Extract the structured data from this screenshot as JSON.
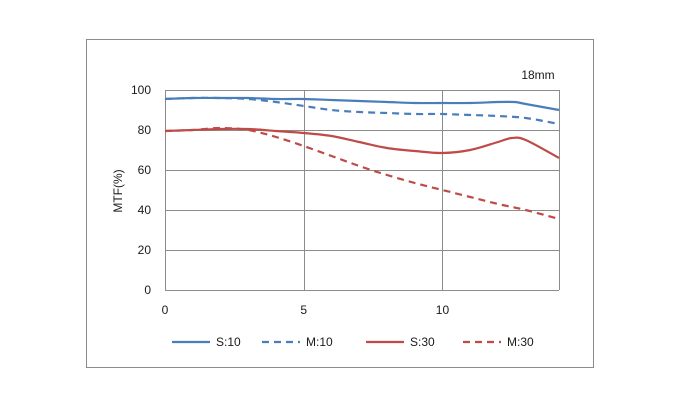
{
  "chart_data": {
    "type": "line",
    "annotation": "18mm",
    "title": "",
    "xlabel": "",
    "ylabel": "MTF(%)",
    "xlim": [
      0,
      14.2
    ],
    "ylim": [
      0,
      100
    ],
    "xticks": [
      0,
      5,
      10
    ],
    "yticks": [
      0,
      20,
      40,
      60,
      80,
      100
    ],
    "xtick_labels": [
      "0",
      "5",
      "10"
    ],
    "ytick_labels": [
      "0",
      "20",
      "40",
      "60",
      "80",
      "100"
    ],
    "grid": "vertical and horizontal",
    "legend_position": "bottom",
    "series": [
      {
        "name": "S:10",
        "color": "#4a7ebb",
        "dashed": false,
        "x": [
          0,
          1,
          2,
          3,
          4,
          5,
          6,
          7,
          8,
          9,
          10,
          11,
          12,
          12.6,
          13,
          14.2
        ],
        "y": [
          95.5,
          96,
          96,
          96,
          95.5,
          95.5,
          95,
          94.5,
          94,
          93.5,
          93.5,
          93.5,
          94,
          94,
          93,
          90
        ]
      },
      {
        "name": "M:10",
        "color": "#4a7ebb",
        "dashed": true,
        "x": [
          0,
          1,
          2,
          3,
          4,
          5,
          6,
          7,
          8,
          9,
          10,
          11,
          12,
          13,
          14.2
        ],
        "y": [
          95.5,
          96,
          96,
          95.5,
          94,
          92,
          90,
          89,
          88.5,
          88,
          88,
          87.5,
          87,
          86,
          83
        ]
      },
      {
        "name": "S:30",
        "color": "#be4b48",
        "dashed": false,
        "x": [
          0,
          1,
          2,
          3,
          4,
          5,
          6,
          7,
          8,
          9,
          10,
          11,
          12,
          12.5,
          13,
          14.2
        ],
        "y": [
          79.5,
          80,
          80.5,
          80.5,
          79.5,
          78.5,
          77,
          74,
          71,
          69.5,
          68.5,
          70,
          74,
          76,
          75,
          66
        ]
      },
      {
        "name": "M:30",
        "color": "#be4b48",
        "dashed": true,
        "x": [
          0,
          1,
          2,
          3,
          4,
          5,
          6,
          7,
          8,
          9,
          10,
          11,
          12,
          13,
          14.2
        ],
        "y": [
          79.5,
          80,
          81,
          80,
          76.5,
          72,
          67,
          62,
          57.5,
          53.5,
          50,
          46.5,
          43,
          40,
          35.5
        ]
      }
    ]
  }
}
